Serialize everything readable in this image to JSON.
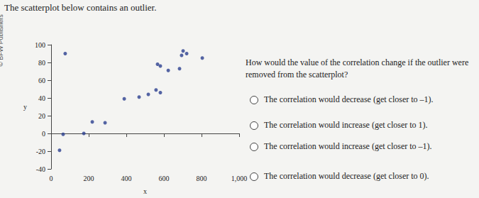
{
  "title": "The scatterplot below contains an outlier.",
  "watermark": "© BFW Publishers",
  "chart_data": {
    "type": "scatter",
    "x": [
      75,
      566,
      581,
      623,
      683,
      702,
      721,
      694,
      804,
      517,
      558,
      581,
      389,
      468,
      219,
      287,
      64,
      174,
      45
    ],
    "values": [
      90,
      78,
      76,
      71,
      73,
      93,
      90,
      88,
      85,
      44,
      49,
      46,
      39,
      41,
      13,
      12,
      -1,
      0,
      -19
    ],
    "xlabel": "x",
    "ylabel": "y",
    "xlim": [
      0,
      1000
    ],
    "xticks": [
      0,
      200,
      400,
      600,
      800,
      1000
    ],
    "ylim": [
      -40,
      100
    ],
    "yticks": [
      -40,
      -20,
      0,
      20,
      40,
      60,
      80,
      100
    ],
    "color": "#2b3f8f",
    "grid": false
  },
  "question": "How would the value of the correlation change if the outlier were removed from the scatterplot?",
  "options": [
    "The correlation would decrease (get closer to –1).",
    "The correlation would increase (get closer to 1).",
    "The correlation would increase (get closer to –1).",
    "The correlation would decrease (get closer to 0)."
  ]
}
